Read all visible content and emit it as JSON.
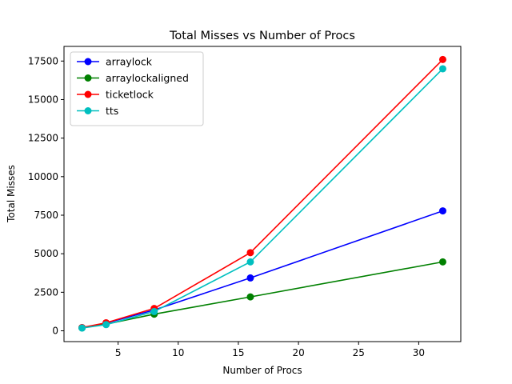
{
  "chart_data": {
    "type": "line",
    "title": "Total Misses vs Number of Procs",
    "xlabel": "Number of Procs",
    "ylabel": "Total Misses",
    "xlim": [
      0.5,
      33.5
    ],
    "ylim": [
      -700,
      18450
    ],
    "xticks": [
      5,
      10,
      15,
      20,
      25,
      30
    ],
    "yticks": [
      0,
      2500,
      5000,
      7500,
      10000,
      12500,
      15000,
      17500
    ],
    "grid": false,
    "legend_position": "top-left",
    "series": [
      {
        "name": "arraylock",
        "color": "#0000ff",
        "x": [
          2,
          4,
          8,
          16,
          32
        ],
        "y": [
          200,
          500,
          1350,
          3430,
          7780
        ]
      },
      {
        "name": "arraylockaligned",
        "color": "#008000",
        "x": [
          2,
          4,
          8,
          16,
          32
        ],
        "y": [
          190,
          430,
          1080,
          2200,
          4470
        ]
      },
      {
        "name": "ticketlock",
        "color": "#ff0000",
        "x": [
          2,
          4,
          8,
          16,
          32
        ],
        "y": [
          210,
          520,
          1450,
          5070,
          17600
        ]
      },
      {
        "name": "tts",
        "color": "#00bfbf",
        "x": [
          2,
          4,
          8,
          16,
          32
        ],
        "y": [
          180,
          400,
          1250,
          4470,
          17000
        ]
      }
    ]
  }
}
